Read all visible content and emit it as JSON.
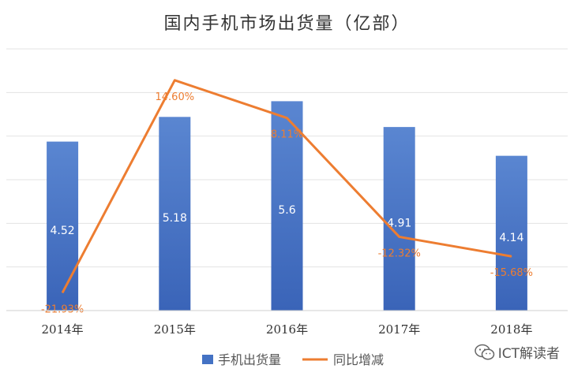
{
  "chart_data": {
    "type": "bar",
    "title": "国内手机市场出货量（亿部）",
    "categories": [
      "2014年",
      "2015年",
      "2016年",
      "2017年",
      "2018年"
    ],
    "series": [
      {
        "name": "手机出货量",
        "type": "bar",
        "color": "#4472C4",
        "values": [
          4.52,
          5.18,
          5.6,
          4.91,
          4.14
        ],
        "labels": [
          "4.52",
          "5.18",
          "5.6",
          "4.91",
          "4.14"
        ]
      },
      {
        "name": "同比增减",
        "type": "line",
        "color": "#ED7D31",
        "values": [
          -21.93,
          14.6,
          8.11,
          -12.32,
          -15.68
        ],
        "labels": [
          "-21.93%",
          "14.60%",
          "8.11%",
          "-12.32%",
          "-15.68%"
        ]
      }
    ],
    "ylim_bar": [
      0,
      7
    ],
    "ylim_line": [
      -25,
      20
    ],
    "grid": true,
    "legend": "bottom"
  },
  "watermark": {
    "text": "ICT解读者",
    "icon": "wechat-icon"
  }
}
